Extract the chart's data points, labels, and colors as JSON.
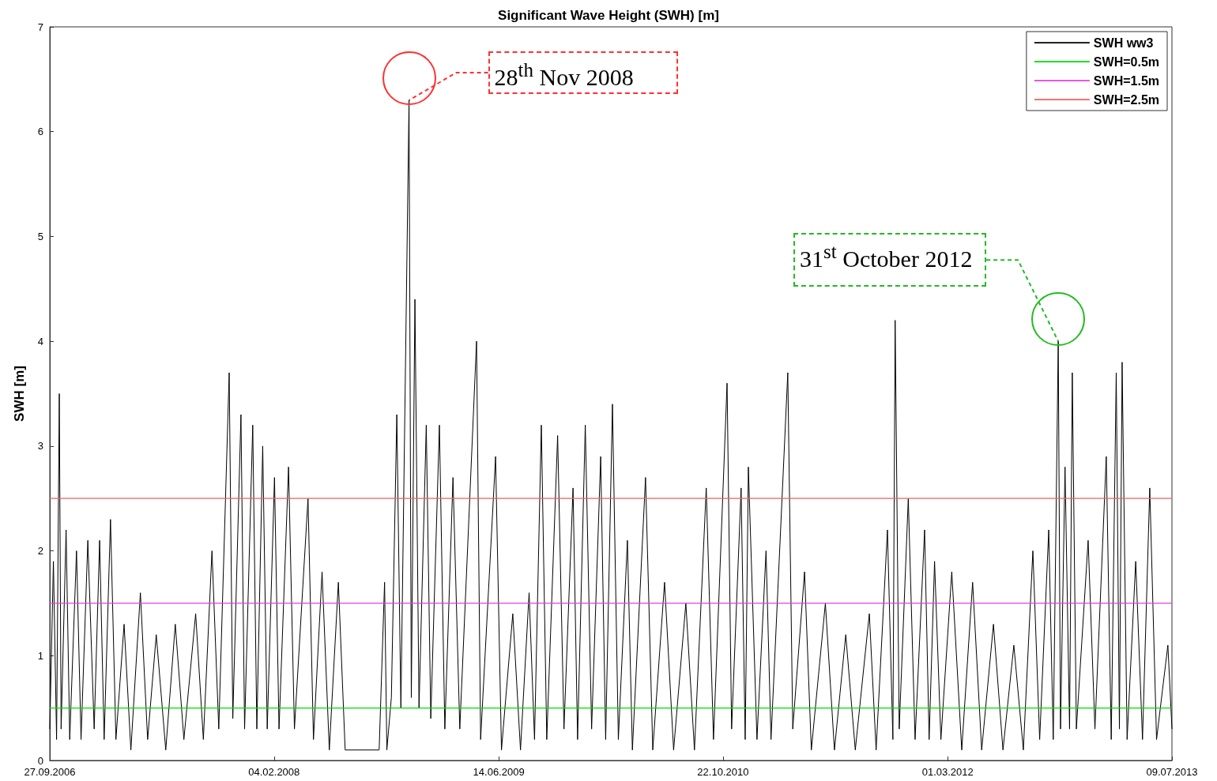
{
  "chart_data": {
    "type": "line",
    "title": "Significant Wave Height (SWH) [m]",
    "ylabel": "SWH [m]",
    "xlim": [
      "2006-09-27",
      "2013-07-09"
    ],
    "xticks": [
      {
        "value": "2006-09-27",
        "label": "27.09.2006"
      },
      {
        "value": "2008-02-04",
        "label": "04.02.2008"
      },
      {
        "value": "2009-06-14",
        "label": "14.06.2009"
      },
      {
        "value": "2010-10-22",
        "label": "22.10.2010"
      },
      {
        "value": "2012-03-01",
        "label": "01.03.2012"
      },
      {
        "value": "2013-07-09",
        "label": "09.07.2013"
      }
    ],
    "ylim": [
      0,
      7
    ],
    "yticks": [
      0,
      1,
      2,
      3,
      4,
      5,
      6,
      7
    ],
    "grid": false,
    "legend": "top right",
    "marker": "none",
    "line_style": "solid",
    "ref_lines": [
      {
        "axis": "y",
        "value": 0.5,
        "label": "SWH=0.5m",
        "color": "#00dd00"
      },
      {
        "axis": "y",
        "value": 1.5,
        "label": "SWH=1.5m",
        "color": "#e040e0"
      },
      {
        "axis": "y",
        "value": 2.5,
        "label": "SWH=2.5m",
        "color": "#f06060"
      }
    ],
    "annotations": [
      {
        "text": "28$^{th}$ Nov 2008",
        "x": "2008-11-28",
        "y": 6.3
      },
      {
        "text": "31$^{st}$ October 2012",
        "x": "2012-10-31",
        "y": 4.0
      }
    ],
    "series": [
      {
        "name": "SWH ww3",
        "color": "#000000",
        "x": [
          "2006-09-27",
          "2006-10-05",
          "2006-10-12",
          "2006-10-18",
          "2006-10-22",
          "2006-11-02",
          "2006-11-10",
          "2006-11-25",
          "2006-12-05",
          "2006-12-20",
          "2007-01-03",
          "2007-01-15",
          "2007-01-25",
          "2007-02-08",
          "2007-02-20",
          "2007-03-10",
          "2007-03-25",
          "2007-04-15",
          "2007-05-01",
          "2007-05-20",
          "2007-06-10",
          "2007-07-01",
          "2007-07-20",
          "2007-08-15",
          "2007-09-01",
          "2007-09-20",
          "2007-10-05",
          "2007-10-28",
          "2007-11-05",
          "2007-11-23",
          "2007-12-01",
          "2007-12-19",
          "2007-12-28",
          "2008-01-10",
          "2008-01-20",
          "2008-02-05",
          "2008-02-15",
          "2008-03-07",
          "2008-03-20",
          "2008-04-19",
          "2008-05-01",
          "2008-05-20",
          "2008-06-05",
          "2008-06-25",
          "2008-07-10",
          "2008-08-02",
          "2008-09-23",
          "2008-10-05",
          "2008-10-10",
          "2008-10-20",
          "2008-11-01",
          "2008-11-10",
          "2008-11-28",
          "2008-12-03",
          "2008-12-11",
          "2008-12-20",
          "2009-01-05",
          "2009-01-15",
          "2009-02-03",
          "2009-02-15",
          "2009-03-05",
          "2009-03-20",
          "2009-04-26",
          "2009-05-05",
          "2009-06-07",
          "2009-06-20",
          "2009-07-15",
          "2009-08-01",
          "2009-08-20",
          "2009-09-01",
          "2009-09-16",
          "2009-09-28",
          "2009-10-22",
          "2009-11-05",
          "2009-11-25",
          "2009-12-05",
          "2009-12-22",
          "2010-01-05",
          "2010-01-25",
          "2010-02-05",
          "2010-02-20",
          "2010-03-05",
          "2010-03-25",
          "2010-04-05",
          "2010-05-04",
          "2010-05-20",
          "2010-06-15",
          "2010-07-05",
          "2010-08-01",
          "2010-08-20",
          "2010-09-15",
          "2010-10-01",
          "2010-10-31",
          "2010-11-10",
          "2010-12-01",
          "2010-12-10",
          "2010-12-17",
          "2011-01-05",
          "2011-01-25",
          "2011-02-05",
          "2011-03-14",
          "2011-03-25",
          "2011-04-20",
          "2011-05-05",
          "2011-06-05",
          "2011-06-25",
          "2011-07-20",
          "2011-08-10",
          "2011-09-10",
          "2011-09-25",
          "2011-10-20",
          "2011-11-01",
          "2011-11-06",
          "2011-11-15",
          "2011-12-05",
          "2011-12-20",
          "2012-01-10",
          "2012-01-20",
          "2012-02-01",
          "2012-02-15",
          "2012-03-10",
          "2012-04-01",
          "2012-04-25",
          "2012-05-15",
          "2012-06-10",
          "2012-07-01",
          "2012-07-25",
          "2012-08-15",
          "2012-09-05",
          "2012-09-20",
          "2012-10-10",
          "2012-10-20",
          "2012-10-31",
          "2012-11-05",
          "2012-11-15",
          "2012-11-25",
          "2012-12-01",
          "2012-12-10",
          "2013-01-05",
          "2013-01-20",
          "2013-02-14",
          "2013-02-25",
          "2013-03-08",
          "2013-03-15",
          "2013-03-21",
          "2013-04-01",
          "2013-04-20",
          "2013-05-05",
          "2013-05-21",
          "2013-06-05",
          "2013-06-30",
          "2013-07-09"
        ],
        "values": [
          0.3,
          1.9,
          0.2,
          3.5,
          0.3,
          2.2,
          0.2,
          2.0,
          0.2,
          2.1,
          0.3,
          2.1,
          0.2,
          2.3,
          0.2,
          1.3,
          0.1,
          1.6,
          0.2,
          1.2,
          0.1,
          1.3,
          0.2,
          1.4,
          0.2,
          2.0,
          0.3,
          3.7,
          0.4,
          3.3,
          0.3,
          3.2,
          0.3,
          3.0,
          0.3,
          2.7,
          0.3,
          2.8,
          0.3,
          2.5,
          0.2,
          1.8,
          0.1,
          1.7,
          0.1,
          0.1,
          0.1,
          1.7,
          0.1,
          0.6,
          3.3,
          0.5,
          6.3,
          0.6,
          4.4,
          0.5,
          3.2,
          0.4,
          3.2,
          0.3,
          2.7,
          0.3,
          4.0,
          0.2,
          2.9,
          0.1,
          1.4,
          0.1,
          1.6,
          0.2,
          3.2,
          0.2,
          3.1,
          0.3,
          2.6,
          0.2,
          3.2,
          0.3,
          2.9,
          0.2,
          3.4,
          0.2,
          2.1,
          0.1,
          2.7,
          0.1,
          1.7,
          0.1,
          1.5,
          0.1,
          2.6,
          0.2,
          3.6,
          0.3,
          2.6,
          0.2,
          2.8,
          0.2,
          2.0,
          0.2,
          3.7,
          0.3,
          1.8,
          0.1,
          1.5,
          0.1,
          1.2,
          0.1,
          1.4,
          0.1,
          2.2,
          0.2,
          4.2,
          0.3,
          2.5,
          0.2,
          2.2,
          0.2,
          1.9,
          0.2,
          1.8,
          0.1,
          1.7,
          0.1,
          1.3,
          0.1,
          1.1,
          0.1,
          2.0,
          0.2,
          2.2,
          0.2,
          4.0,
          0.3,
          2.8,
          0.3,
          3.7,
          0.3,
          2.1,
          0.3,
          2.9,
          0.2,
          3.7,
          0.3,
          3.8,
          0.2,
          1.9,
          0.2,
          2.6,
          0.2,
          1.1,
          0.3
        ]
      }
    ]
  }
}
